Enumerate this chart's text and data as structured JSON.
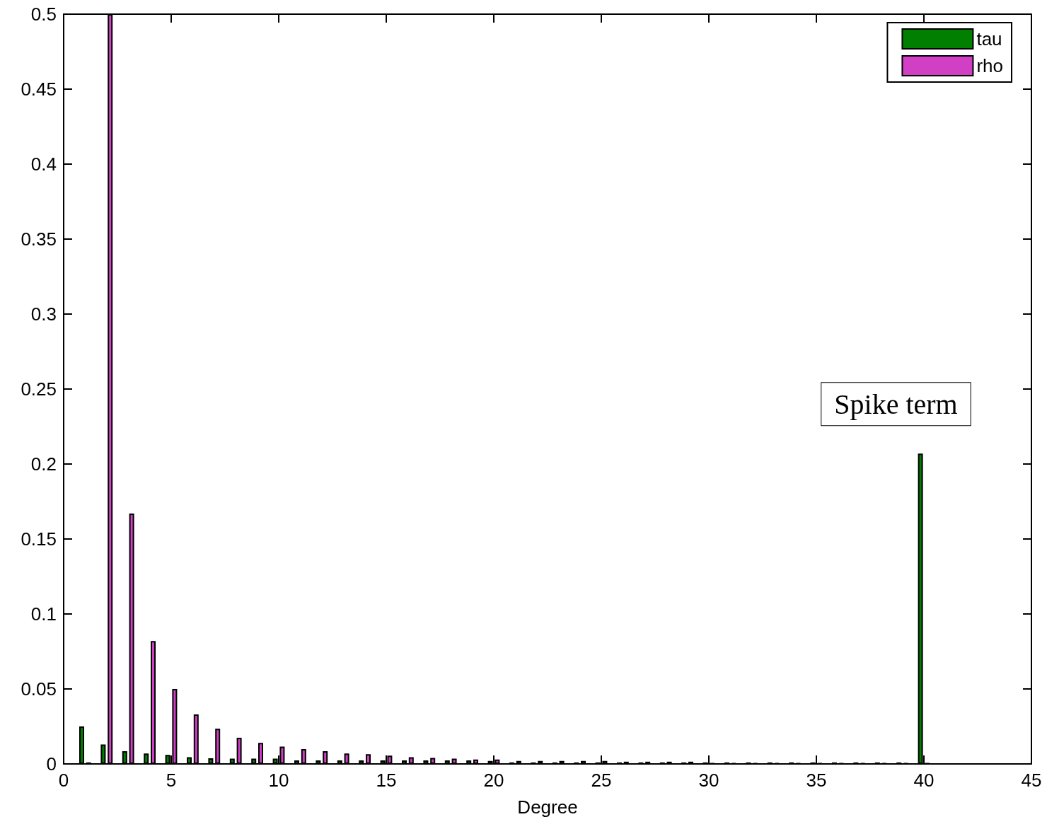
{
  "chart_data": {
    "type": "bar",
    "xlabel": "Degree",
    "x": [
      1,
      2,
      3,
      4,
      5,
      6,
      7,
      8,
      9,
      10,
      11,
      12,
      13,
      14,
      15,
      16,
      17,
      18,
      19,
      20,
      21,
      22,
      23,
      24,
      25,
      26,
      27,
      28,
      29,
      30,
      31,
      32,
      33,
      34,
      35,
      36,
      37,
      38,
      39,
      40
    ],
    "series": [
      {
        "name": "tau",
        "color": "#007f00",
        "values": [
          0.025,
          0.013,
          0.0085,
          0.007,
          0.006,
          0.0045,
          0.0038,
          0.0035,
          0.0035,
          0.0035,
          0.0024,
          0.0024,
          0.0024,
          0.0024,
          0.0024,
          0.0024,
          0.0024,
          0.0024,
          0.0024,
          0.002,
          0.001,
          0.001,
          0.001,
          0.001,
          0.001,
          0.001,
          0.001,
          0.001,
          0.001,
          0.001,
          0.001,
          0.001,
          0.001,
          0.001,
          0.001,
          0.001,
          0.001,
          0.001,
          0.001,
          0.207
        ]
      },
      {
        "name": "rho",
        "color": "#d13fc4",
        "values": [
          0.001,
          0.5,
          0.167,
          0.082,
          0.05,
          0.033,
          0.0235,
          0.0175,
          0.014,
          0.0115,
          0.0099,
          0.0085,
          0.007,
          0.0065,
          0.0055,
          0.0045,
          0.004,
          0.0035,
          0.003,
          0.003,
          0.002,
          0.002,
          0.002,
          0.002,
          0.002,
          0.0015,
          0.0015,
          0.0015,
          0.0015,
          0.0005,
          0.0005,
          0.0005,
          0.0005,
          0.0005,
          0.0005,
          0.0005,
          0.0005,
          0.0005,
          0.0005,
          0.0005
        ]
      }
    ],
    "xlim": [
      0,
      45
    ],
    "xticks": [
      0,
      5,
      10,
      15,
      20,
      25,
      30,
      35,
      40,
      45
    ],
    "ylim": [
      0,
      0.5
    ],
    "yticks": [
      0,
      0.05,
      0.1,
      0.15,
      0.2,
      0.25,
      0.3,
      0.35,
      0.4,
      0.45,
      0.5
    ],
    "legend": "top right",
    "grid": false,
    "annotations": [
      "Spike term"
    ]
  }
}
